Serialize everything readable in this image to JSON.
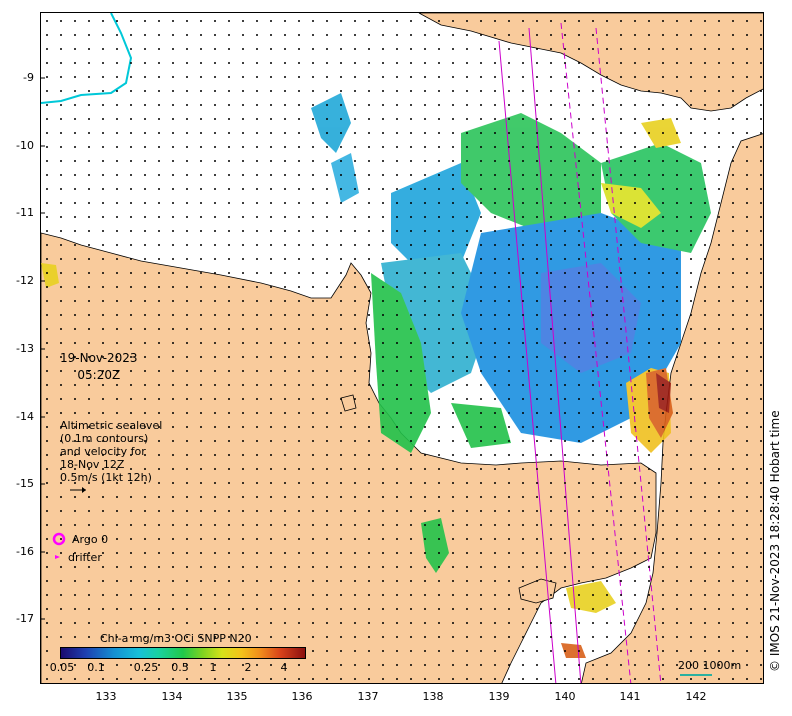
{
  "date_line1": "19-Nov-2023",
  "date_line2": "05:20Z",
  "description": [
    "Altimetric sealevel",
    "(0.1m contours)",
    "and velocity for",
    "18-Nov 12Z",
    "0.5m/s (1kt 12h)"
  ],
  "legend": {
    "argo_label": "Argo 0",
    "drifter_label": "drifter"
  },
  "colorbar": {
    "title": "Chl-a mg/m3 OCi SNPP N20",
    "tick_labels": [
      "0.05",
      "0.1",
      "0.25",
      "0.5",
      "1",
      "2",
      "4"
    ]
  },
  "scale_label": "200  1000m",
  "credit": "© IMOS 21-Nov-2023 18:28:40 Hobart time",
  "axes": {
    "lat_labels": [
      "-9",
      "-10",
      "-11",
      "-12",
      "-13",
      "-14",
      "-15",
      "-16",
      "-17"
    ],
    "lon_labels": [
      "133",
      "134",
      "135",
      "136",
      "137",
      "138",
      "139",
      "140",
      "141",
      "142"
    ]
  },
  "colors": {
    "land": "#f9cb9c",
    "coast": "#000000",
    "track": "#cc00cc",
    "river": "#00c8d8"
  }
}
